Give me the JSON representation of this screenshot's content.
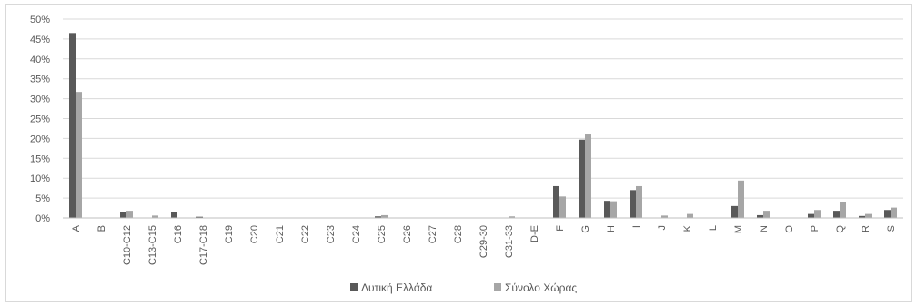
{
  "chart_data": {
    "type": "bar",
    "categories": [
      "A",
      "B",
      "C10-C12",
      "C13-C15",
      "C16",
      "C17-C18",
      "C19",
      "C20",
      "C21",
      "C22",
      "C23",
      "C24",
      "C25",
      "C26",
      "C27",
      "C28",
      "C29-30",
      "C31-33",
      "D-E",
      "F",
      "G",
      "H",
      "I",
      "J",
      "K",
      "L",
      "M",
      "N",
      "O",
      "P",
      "Q",
      "R",
      "S"
    ],
    "series": [
      {
        "name": "Δυτική Ελλάδα",
        "color": "#595959",
        "values": [
          46.5,
          0,
          1.5,
          0,
          1.5,
          0.3,
          0,
          0,
          0,
          0,
          0,
          0,
          0.4,
          0,
          0,
          0,
          0,
          0,
          0,
          8.0,
          19.7,
          4.3,
          7.0,
          0,
          0,
          0,
          3.0,
          0.7,
          0,
          1.0,
          1.8,
          0.5,
          2.0
        ]
      },
      {
        "name": "Σύνολο Χώρας",
        "color": "#a6a6a6",
        "values": [
          31.7,
          0,
          1.8,
          0.6,
          0,
          0,
          0,
          0,
          0,
          0,
          0,
          0,
          0.7,
          0,
          0,
          0,
          0,
          0.4,
          0,
          5.4,
          21.0,
          4.2,
          8.0,
          0.6,
          1.0,
          0,
          9.4,
          1.8,
          0,
          2.0,
          4.0,
          1.0,
          2.6
        ]
      }
    ],
    "ylim": [
      0,
      50
    ],
    "yticks": [
      "0%",
      "5%",
      "10%",
      "15%",
      "20%",
      "25%",
      "30%",
      "35%",
      "40%",
      "45%",
      "50%"
    ],
    "ytick_values": [
      0,
      5,
      10,
      15,
      20,
      25,
      30,
      35,
      40,
      45,
      50
    ],
    "grid": true,
    "legend_position": "bottom"
  }
}
